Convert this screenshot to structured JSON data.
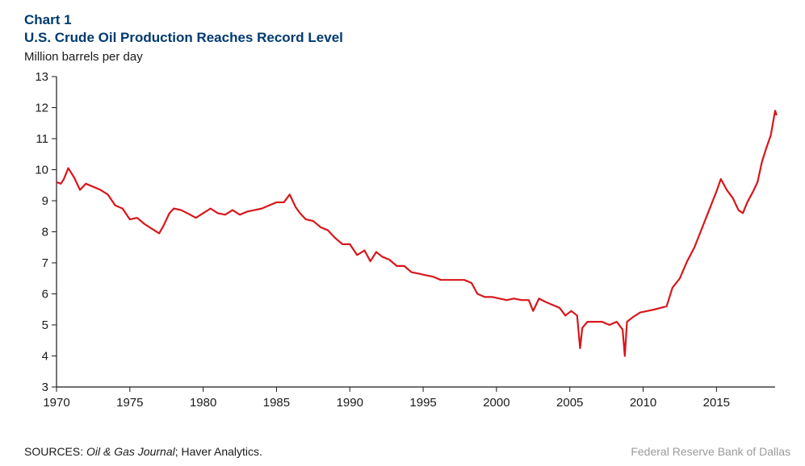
{
  "header": {
    "chart_number": "Chart 1",
    "title": "U.S. Crude Oil Production Reaches Record Level",
    "title_color": "#003a70",
    "title_fontsize": 17,
    "title_fontweight": "bold"
  },
  "ylabel": {
    "text": "Million barrels per day",
    "fontsize": 15,
    "color": "#1a1a1a"
  },
  "chart": {
    "type": "line",
    "background_color": "#ffffff",
    "axis_color": "#1a1a1a",
    "xlim": [
      1970,
      2019
    ],
    "ylim": [
      3,
      13
    ],
    "xtick_step": 5,
    "xticks": [
      1970,
      1975,
      1980,
      1985,
      1990,
      1995,
      2000,
      2005,
      2010,
      2015
    ],
    "ytick_step": 1,
    "yticks": [
      3,
      4,
      5,
      6,
      7,
      8,
      9,
      10,
      11,
      12,
      13
    ],
    "tick_fontsize": 15,
    "grid": false,
    "line_color": "#d8161b",
    "line_width": 2.2,
    "series": [
      {
        "x": 1970.0,
        "y": 9.6
      },
      {
        "x": 1970.3,
        "y": 9.55
      },
      {
        "x": 1970.5,
        "y": 9.7
      },
      {
        "x": 1970.8,
        "y": 10.05
      },
      {
        "x": 1971.2,
        "y": 9.75
      },
      {
        "x": 1971.6,
        "y": 9.35
      },
      {
        "x": 1972.0,
        "y": 9.55
      },
      {
        "x": 1972.5,
        "y": 9.45
      },
      {
        "x": 1973.0,
        "y": 9.35
      },
      {
        "x": 1973.5,
        "y": 9.2
      },
      {
        "x": 1974.0,
        "y": 8.85
      },
      {
        "x": 1974.5,
        "y": 8.75
      },
      {
        "x": 1975.0,
        "y": 8.4
      },
      {
        "x": 1975.5,
        "y": 8.45
      },
      {
        "x": 1976.0,
        "y": 8.25
      },
      {
        "x": 1976.5,
        "y": 8.1
      },
      {
        "x": 1977.0,
        "y": 7.95
      },
      {
        "x": 1977.3,
        "y": 8.2
      },
      {
        "x": 1977.7,
        "y": 8.6
      },
      {
        "x": 1978.0,
        "y": 8.75
      },
      {
        "x": 1978.5,
        "y": 8.7
      },
      {
        "x": 1979.0,
        "y": 8.58
      },
      {
        "x": 1979.5,
        "y": 8.45
      },
      {
        "x": 1980.0,
        "y": 8.6
      },
      {
        "x": 1980.5,
        "y": 8.75
      },
      {
        "x": 1981.0,
        "y": 8.6
      },
      {
        "x": 1981.5,
        "y": 8.55
      },
      {
        "x": 1982.0,
        "y": 8.7
      },
      {
        "x": 1982.5,
        "y": 8.55
      },
      {
        "x": 1983.0,
        "y": 8.65
      },
      {
        "x": 1983.5,
        "y": 8.7
      },
      {
        "x": 1984.0,
        "y": 8.75
      },
      {
        "x": 1984.5,
        "y": 8.85
      },
      {
        "x": 1985.0,
        "y": 8.95
      },
      {
        "x": 1985.5,
        "y": 8.95
      },
      {
        "x": 1985.9,
        "y": 9.2
      },
      {
        "x": 1986.3,
        "y": 8.8
      },
      {
        "x": 1986.6,
        "y": 8.6
      },
      {
        "x": 1987.0,
        "y": 8.4
      },
      {
        "x": 1987.5,
        "y": 8.35
      },
      {
        "x": 1988.0,
        "y": 8.15
      },
      {
        "x": 1988.5,
        "y": 8.05
      },
      {
        "x": 1989.0,
        "y": 7.8
      },
      {
        "x": 1989.5,
        "y": 7.6
      },
      {
        "x": 1990.0,
        "y": 7.6
      },
      {
        "x": 1990.5,
        "y": 7.25
      },
      {
        "x": 1991.0,
        "y": 7.4
      },
      {
        "x": 1991.4,
        "y": 7.05
      },
      {
        "x": 1991.8,
        "y": 7.35
      },
      {
        "x": 1992.2,
        "y": 7.2
      },
      {
        "x": 1992.7,
        "y": 7.1
      },
      {
        "x": 1993.2,
        "y": 6.9
      },
      {
        "x": 1993.7,
        "y": 6.9
      },
      {
        "x": 1994.2,
        "y": 6.7
      },
      {
        "x": 1994.7,
        "y": 6.65
      },
      {
        "x": 1995.2,
        "y": 6.6
      },
      {
        "x": 1995.7,
        "y": 6.55
      },
      {
        "x": 1996.2,
        "y": 6.45
      },
      {
        "x": 1996.7,
        "y": 6.45
      },
      {
        "x": 1997.2,
        "y": 6.45
      },
      {
        "x": 1997.8,
        "y": 6.45
      },
      {
        "x": 1998.3,
        "y": 6.35
      },
      {
        "x": 1998.7,
        "y": 6.0
      },
      {
        "x": 1999.2,
        "y": 5.9
      },
      {
        "x": 1999.7,
        "y": 5.9
      },
      {
        "x": 2000.2,
        "y": 5.85
      },
      {
        "x": 2000.7,
        "y": 5.8
      },
      {
        "x": 2001.2,
        "y": 5.85
      },
      {
        "x": 2001.7,
        "y": 5.8
      },
      {
        "x": 2002.2,
        "y": 5.8
      },
      {
        "x": 2002.5,
        "y": 5.45
      },
      {
        "x": 2002.9,
        "y": 5.85
      },
      {
        "x": 2003.3,
        "y": 5.75
      },
      {
        "x": 2003.8,
        "y": 5.65
      },
      {
        "x": 2004.3,
        "y": 5.55
      },
      {
        "x": 2004.7,
        "y": 5.3
      },
      {
        "x": 2005.1,
        "y": 5.45
      },
      {
        "x": 2005.5,
        "y": 5.3
      },
      {
        "x": 2005.7,
        "y": 4.25
      },
      {
        "x": 2005.85,
        "y": 4.9
      },
      {
        "x": 2006.2,
        "y": 5.1
      },
      {
        "x": 2006.7,
        "y": 5.1
      },
      {
        "x": 2007.2,
        "y": 5.1
      },
      {
        "x": 2007.7,
        "y": 5.0
      },
      {
        "x": 2008.2,
        "y": 5.1
      },
      {
        "x": 2008.6,
        "y": 4.85
      },
      {
        "x": 2008.75,
        "y": 4.0
      },
      {
        "x": 2008.9,
        "y": 5.1
      },
      {
        "x": 2009.3,
        "y": 5.25
      },
      {
        "x": 2009.8,
        "y": 5.4
      },
      {
        "x": 2010.3,
        "y": 5.45
      },
      {
        "x": 2010.8,
        "y": 5.5
      },
      {
        "x": 2011.2,
        "y": 5.55
      },
      {
        "x": 2011.6,
        "y": 5.6
      },
      {
        "x": 2012.0,
        "y": 6.2
      },
      {
        "x": 2012.5,
        "y": 6.5
      },
      {
        "x": 2013.0,
        "y": 7.05
      },
      {
        "x": 2013.5,
        "y": 7.5
      },
      {
        "x": 2014.0,
        "y": 8.1
      },
      {
        "x": 2014.5,
        "y": 8.7
      },
      {
        "x": 2015.0,
        "y": 9.3
      },
      {
        "x": 2015.3,
        "y": 9.7
      },
      {
        "x": 2015.7,
        "y": 9.35
      },
      {
        "x": 2016.1,
        "y": 9.1
      },
      {
        "x": 2016.5,
        "y": 8.7
      },
      {
        "x": 2016.8,
        "y": 8.6
      },
      {
        "x": 2017.1,
        "y": 8.95
      },
      {
        "x": 2017.5,
        "y": 9.3
      },
      {
        "x": 2017.8,
        "y": 9.6
      },
      {
        "x": 2018.1,
        "y": 10.25
      },
      {
        "x": 2018.4,
        "y": 10.7
      },
      {
        "x": 2018.7,
        "y": 11.1
      },
      {
        "x": 2019.0,
        "y": 11.9
      },
      {
        "x": 2019.1,
        "y": 11.75
      }
    ]
  },
  "footer": {
    "sources_label": "SOURCES: ",
    "sources_journal": "Oil & Gas Journal",
    "sources_rest": "; Haver Analytics.",
    "attribution": "Federal Reserve Bank of Dallas",
    "attribution_color": "#9a9a9a",
    "fontsize": 14
  }
}
